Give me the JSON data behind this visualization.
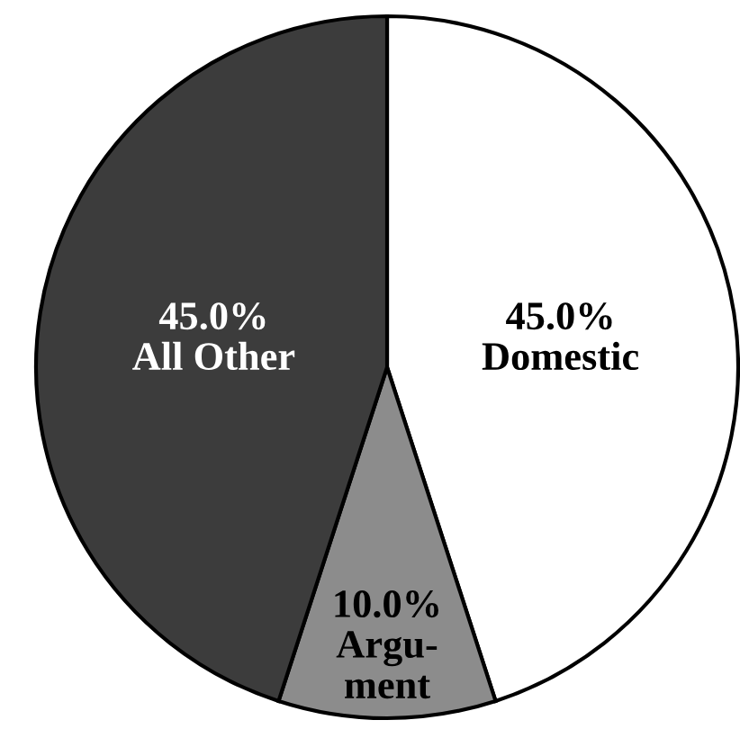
{
  "chart_data": {
    "type": "pie",
    "categories": [
      "Domestic",
      "Argu-\nment",
      "All Other"
    ],
    "values": [
      45,
      10,
      45
    ],
    "value_labels": [
      "45.0%",
      "10.0%",
      "45.0%"
    ],
    "colors": [
      "#ffffff",
      "#8c8c8c",
      "#3c3c3c"
    ]
  }
}
